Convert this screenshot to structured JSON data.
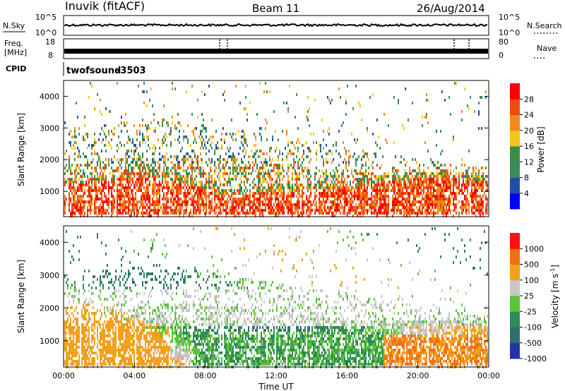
{
  "header": {
    "station": "Inuvik (fitACF)",
    "beam": "Beam 11",
    "date": "26/Aug/2014"
  },
  "noise_panel": {
    "left_label": "N.Sky",
    "left_ticks": [
      "10^5",
      "10^0"
    ],
    "right_ticks": [
      "10^5",
      "10^0"
    ],
    "right_label": "N.Search"
  },
  "freq_panel": {
    "left_label_1": "Freq.",
    "left_label_2": "[MHz]",
    "left_ticks": [
      "18",
      "8"
    ],
    "right_ticks": [
      "80",
      "0"
    ],
    "right_label": "Nave"
  },
  "cpid_panel": {
    "label": "CPID",
    "program": "twofsound",
    "id": "-3503"
  },
  "chart_data": [
    {
      "type": "heatmap",
      "name": "power",
      "ylabel": "Slant Range [km]",
      "yticks": [
        "4000",
        "3000",
        "2000",
        "1000"
      ],
      "ylim": [
        200,
        4500
      ],
      "colorbar_label": "Power [dB]",
      "colorbar_ticks": [
        "28",
        "24",
        "20",
        "16",
        "12",
        "8",
        "4"
      ],
      "colors": [
        "#0000ff",
        "#1e4fa8",
        "#3d8a5c",
        "#3c8d48",
        "#f3c51c",
        "#f08a1e",
        "#f04a10",
        "#ff0000"
      ]
    },
    {
      "type": "heatmap",
      "name": "velocity",
      "ylabel": "Slant Range [km]",
      "yticks": [
        "4000",
        "3000",
        "2000",
        "1000"
      ],
      "ylim": [
        200,
        4500
      ],
      "colorbar_label": "Velocity [m s",
      "colorbar_label_sup": "-1",
      "colorbar_label_end": "]",
      "colorbar_ticks": [
        "1000",
        "500",
        "100",
        "25",
        "-25",
        "-100",
        "-500",
        "-1000"
      ],
      "colors": [
        "#2233aa",
        "#2f6f6f",
        "#2f8a5a",
        "#5ec23a",
        "#c7c7c7",
        "#f3a01c",
        "#f07018",
        "#ff1010"
      ],
      "xlabel": "Time UT",
      "xticks": [
        "00:00",
        "04:00",
        "08:00",
        "12:00",
        "16:00",
        "20:00",
        "00:00"
      ]
    }
  ]
}
